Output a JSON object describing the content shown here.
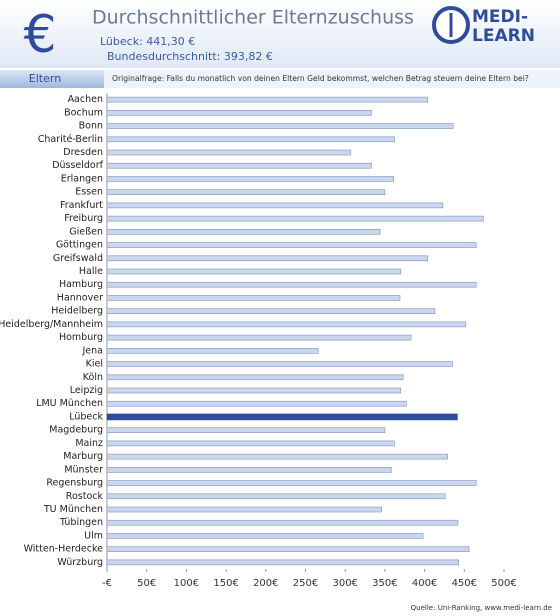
{
  "header": {
    "icon": "€",
    "title": "Durchschnittlicher Elternzuschuss",
    "line1": "Lübeck: 441,30 €",
    "line2": "Bundesdurchschnitt: 393,82 €",
    "logo_top": "MEDI-",
    "logo_bottom": "LEARN",
    "tab": "Eltern",
    "question": "Originalfrage: Falls du monatlich von deinen Eltern Geld bekommst, welchen Betrag steuern deine Eltern bei?"
  },
  "chart_data": {
    "type": "bar",
    "orientation": "horizontal",
    "categories": [
      "Aachen",
      "Bochum",
      "Bonn",
      "Charité-Berlin",
      "Dresden",
      "Düsseldorf",
      "Erlangen",
      "Essen",
      "Frankfurt",
      "Freiburg",
      "Gießen",
      "Göttingen",
      "Greifswald",
      "Halle",
      "Hamburg",
      "Hannover",
      "Heidelberg",
      "Heidelberg/Mannheim",
      "Homburg",
      "Jena",
      "Kiel",
      "Köln",
      "Leipzig",
      "LMU München",
      "Lübeck",
      "Magdeburg",
      "Mainz",
      "Marburg",
      "Münster",
      "Regensburg",
      "Rostock",
      "TU München",
      "Tübingen",
      "Ulm",
      "Witten-Herdecke",
      "Würzburg"
    ],
    "values": [
      404,
      333,
      436,
      362,
      307,
      333,
      361,
      350,
      423,
      474,
      344,
      465,
      404,
      370,
      465,
      369,
      413,
      452,
      383,
      266,
      435,
      373,
      370,
      377,
      441.3,
      350,
      362,
      429,
      358,
      465,
      426,
      346,
      442,
      398,
      456,
      443
    ],
    "colors": [
      "#c9d6ec",
      "#c9d6ec",
      "#c9d6ec",
      "#c9d6ec",
      "#c9d6ec",
      "#c9d6ec",
      "#c9d6ec",
      "#c9d6ec",
      "#c9d6ec",
      "#c9d6ec",
      "#c9d6ec",
      "#c9d6ec",
      "#c9d6ec",
      "#c9d6ec",
      "#c9d6ec",
      "#c9d6ec",
      "#c9d6ec",
      "#c9d6ec",
      "#c9d6ec",
      "#c9d6ec",
      "#c9d6ec",
      "#c9d6ec",
      "#c9d6ec",
      "#c9d6ec",
      "#2f4b9c",
      "#c9d6ec",
      "#c9d6ec",
      "#c9d6ec",
      "#c9d6ec",
      "#c9d6ec",
      "#c9d6ec",
      "#c9d6ec",
      "#c9d6ec",
      "#c9d6ec",
      "#c9d6ec",
      "#c9d6ec"
    ],
    "xlim": [
      0,
      500
    ],
    "xticks": [
      {
        "value": 0,
        "label": "-€"
      },
      {
        "value": 50,
        "label": "50€"
      },
      {
        "value": 100,
        "label": "100€"
      },
      {
        "value": 150,
        "label": "150€"
      },
      {
        "value": 200,
        "label": "200€"
      },
      {
        "value": 250,
        "label": "250€"
      },
      {
        "value": 300,
        "label": "300€"
      },
      {
        "value": 350,
        "label": "350€"
      },
      {
        "value": 400,
        "label": "400€"
      },
      {
        "value": 450,
        "label": "450€"
      },
      {
        "value": 500,
        "label": "500€"
      }
    ],
    "source": "Quelle: Uni-Ranking, www.medi-learn.de"
  }
}
